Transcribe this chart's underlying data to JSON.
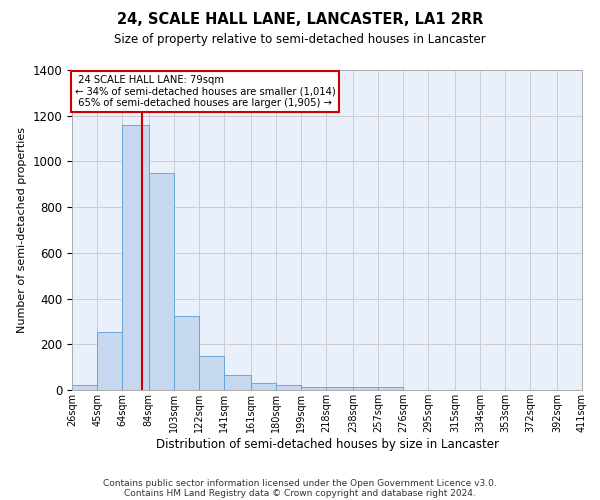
{
  "title": "24, SCALE HALL LANE, LANCASTER, LA1 2RR",
  "subtitle": "Size of property relative to semi-detached houses in Lancaster",
  "xlabel": "Distribution of semi-detached houses by size in Lancaster",
  "ylabel": "Number of semi-detached properties",
  "property_label": "24 SCALE HALL LANE: 79sqm",
  "annotation_line1": "← 34% of semi-detached houses are smaller (1,014)",
  "annotation_line2": "65% of semi-detached houses are larger (1,905) →",
  "bin_edges": [
    26,
    45,
    64,
    84,
    103,
    122,
    141,
    161,
    180,
    199,
    218,
    238,
    257,
    276,
    295,
    315,
    334,
    353,
    372,
    392,
    411
  ],
  "bin_labels": [
    "26sqm",
    "45sqm",
    "64sqm",
    "84sqm",
    "103sqm",
    "122sqm",
    "141sqm",
    "161sqm",
    "180sqm",
    "199sqm",
    "218sqm",
    "238sqm",
    "257sqm",
    "276sqm",
    "295sqm",
    "315sqm",
    "334sqm",
    "353sqm",
    "372sqm",
    "392sqm",
    "411sqm"
  ],
  "bar_heights": [
    20,
    255,
    1160,
    950,
    325,
    150,
    65,
    30,
    20,
    15,
    15,
    15,
    15,
    0,
    0,
    0,
    0,
    0,
    0,
    0
  ],
  "bar_color": "#c5d8f0",
  "bar_edge_color": "#5a9fd4",
  "vline_x": 79,
  "vline_color": "#cc0000",
  "grid_color": "#cccccc",
  "bg_color": "#eaf0fb",
  "annotation_box_color": "#cc0000",
  "ylim": [
    0,
    1400
  ],
  "yticks": [
    0,
    200,
    400,
    600,
    800,
    1000,
    1200,
    1400
  ],
  "footer_line1": "Contains HM Land Registry data © Crown copyright and database right 2024.",
  "footer_line2": "Contains public sector information licensed under the Open Government Licence v3.0."
}
